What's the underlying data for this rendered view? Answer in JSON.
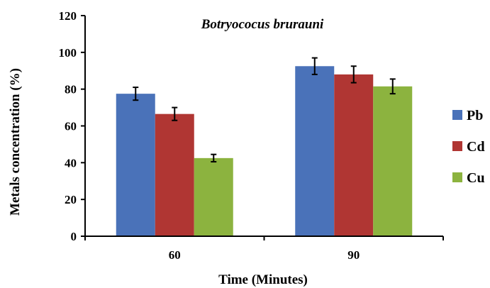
{
  "chart_data": {
    "type": "bar",
    "title": "Botryococus brurauni",
    "xlabel": "Time (Minutes)",
    "ylabel": "Metals concentration (%)",
    "categories": [
      "60",
      "90"
    ],
    "ylim": [
      0,
      120
    ],
    "yticks": [
      "0",
      "20",
      "40",
      "60",
      "80",
      "100",
      "120"
    ],
    "grid": false,
    "legend_position": "right",
    "series": [
      {
        "name": "Pb",
        "color": "#4a72b9",
        "values": [
          77.5,
          92.5
        ],
        "errors": [
          3.5,
          4.5
        ]
      },
      {
        "name": "Cd",
        "color": "#b03633",
        "values": [
          66.5,
          88.0
        ],
        "errors": [
          3.5,
          4.5
        ]
      },
      {
        "name": "Cu",
        "color": "#8cb33f",
        "values": [
          42.5,
          81.5
        ],
        "errors": [
          2.0,
          4.0
        ]
      }
    ]
  }
}
